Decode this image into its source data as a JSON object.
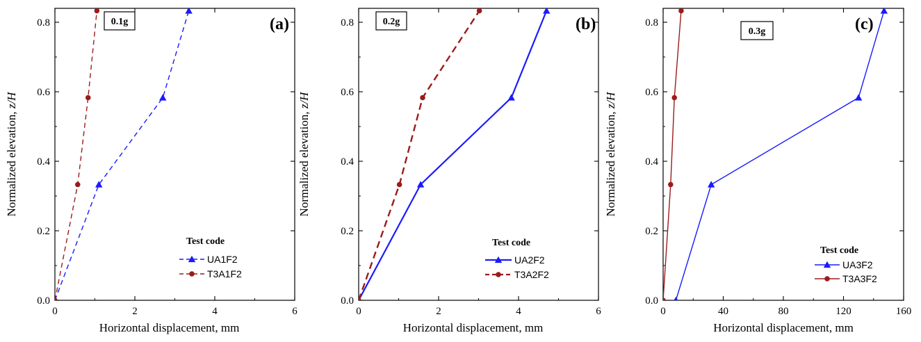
{
  "chart_data": [
    {
      "type": "line",
      "panel_label": "(a)",
      "badge": "0.1g",
      "xlabel": "Horizontal displacement, mm",
      "ylabel": "Normalized elevation, z/H",
      "xlim": [
        0,
        6
      ],
      "ylim": [
        0,
        0.84
      ],
      "xticks": [
        "0",
        "2",
        "4",
        "6"
      ],
      "yticks": [
        "0.0",
        "0.2",
        "0.4",
        "0.6",
        "0.8"
      ],
      "xtick_values": [
        0,
        2,
        4,
        6
      ],
      "ytick_values": [
        0,
        0.2,
        0.4,
        0.6,
        0.8
      ],
      "legend_title": "Test code",
      "legend_position": "bottom-right",
      "series": [
        {
          "name": "UA1F2",
          "color": "#1a1aff",
          "marker": "triangle",
          "line": "dashed",
          "x": [
            0.0,
            1.1,
            2.7,
            3.35
          ],
          "y": [
            0.0,
            0.333,
            0.583,
            0.833
          ]
        },
        {
          "name": "T3A1F2",
          "color": "#9b1b1b",
          "marker": "circle",
          "line": "dashed",
          "x": [
            0.0,
            0.57,
            0.83,
            1.05
          ],
          "y": [
            0.0,
            0.333,
            0.583,
            0.833
          ]
        }
      ]
    },
    {
      "type": "line",
      "panel_label": "(b)",
      "badge": "0.2g",
      "xlabel": "Horizontal displacement, mm",
      "ylabel": "Normalized elevation, z/H",
      "xlim": [
        0,
        6
      ],
      "ylim": [
        0,
        0.84
      ],
      "xticks": [
        "0",
        "2",
        "4",
        "6"
      ],
      "yticks": [
        "0.0",
        "0.2",
        "0.4",
        "0.6",
        "0.8"
      ],
      "xtick_values": [
        0,
        2,
        4,
        6
      ],
      "ytick_values": [
        0,
        0.2,
        0.4,
        0.6,
        0.8
      ],
      "legend_title": "Test code",
      "legend_position": "bottom-right",
      "series": [
        {
          "name": "UA2F2",
          "color": "#1a1aff",
          "marker": "triangle",
          "line": "solid",
          "x": [
            0.0,
            1.55,
            3.82,
            4.7
          ],
          "y": [
            0.0,
            0.333,
            0.583,
            0.833
          ]
        },
        {
          "name": "T3A2F2",
          "color": "#9b1b1b",
          "marker": "circle",
          "line": "dashed",
          "x": [
            0.0,
            1.02,
            1.6,
            3.02
          ],
          "y": [
            0.0,
            0.333,
            0.583,
            0.833
          ]
        }
      ]
    },
    {
      "type": "line",
      "panel_label": "(c)",
      "badge": "0.3g",
      "xlabel": "Horizontal displacement, mm",
      "ylabel": "Normalized elevation, z/H",
      "xlim": [
        0,
        160
      ],
      "ylim": [
        0,
        0.84
      ],
      "xticks": [
        "0",
        "40",
        "80",
        "120",
        "160"
      ],
      "yticks": [
        "0.0",
        "0.2",
        "0.4",
        "0.6",
        "0.8"
      ],
      "xtick_values": [
        0,
        40,
        80,
        120,
        160
      ],
      "ytick_values": [
        0,
        0.2,
        0.4,
        0.6,
        0.8
      ],
      "legend_title": "Test code",
      "legend_position": "bottom-right",
      "series": [
        {
          "name": "UA3F2",
          "color": "#1a1aff",
          "marker": "triangle",
          "line": "solid",
          "x": [
            8.5,
            32,
            130,
            147
          ],
          "y": [
            0.0,
            0.333,
            0.583,
            0.833
          ]
        },
        {
          "name": "T3A3F2",
          "color": "#9b1b1b",
          "marker": "circle",
          "line": "solid",
          "x": [
            0.0,
            5,
            7.5,
            12
          ],
          "y": [
            0.0,
            0.333,
            0.583,
            0.833
          ]
        }
      ]
    }
  ]
}
